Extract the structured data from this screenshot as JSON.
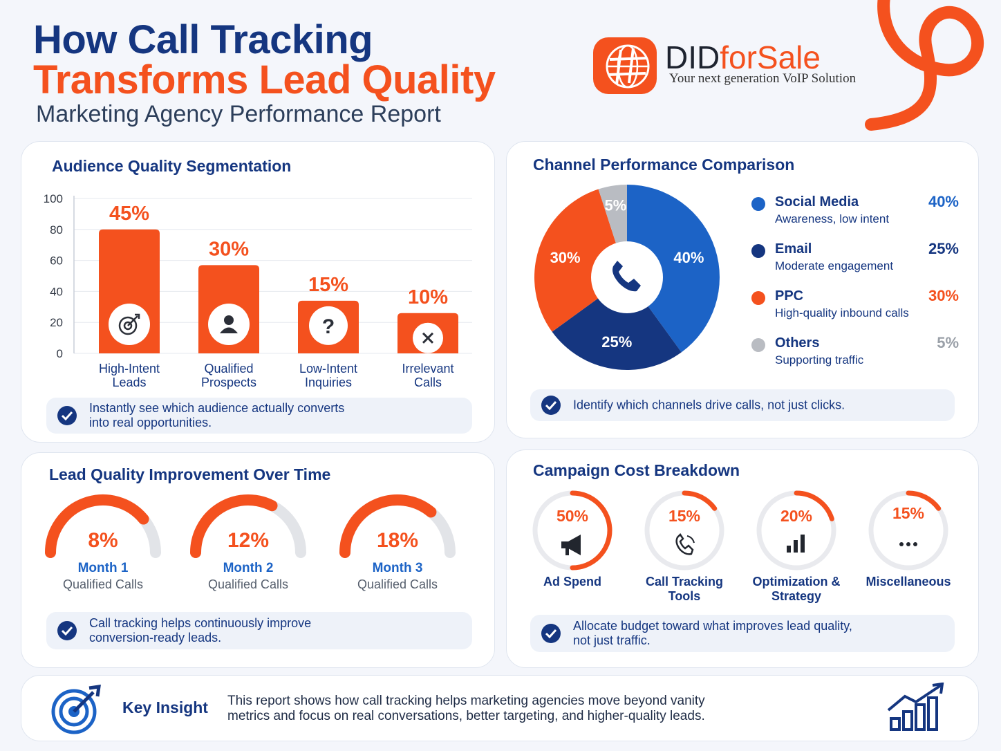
{
  "header": {
    "title_line1": "How Call Tracking",
    "title_line2": "Transforms Lead Quality",
    "subtitle": "Marketing Agency Performance Report"
  },
  "logo": {
    "name_part1": "DID",
    "name_part2": "forSale",
    "tagline": "Your next generation VoIP Solution"
  },
  "colors": {
    "orange": "#f4511e",
    "blue": "#1c63c6",
    "navy": "#153680",
    "gray": "#b9bcc2"
  },
  "chart_data": [
    {
      "type": "bar",
      "title": "Audience Quality Segmentation",
      "categories": [
        "High-Intent\nLeads",
        "Qualified\nProspects",
        "Low-Intent\nInquiries",
        "Irrelevant\nCalls"
      ],
      "values": [
        45,
        30,
        15,
        10
      ],
      "value_labels": [
        "45%",
        "30%",
        "15%",
        "10%"
      ],
      "bar_heights": [
        80,
        57,
        34,
        26
      ],
      "icons": [
        "target-icon",
        "person-icon",
        "question-icon",
        "x-icon"
      ],
      "yticks": [
        100,
        80,
        60,
        40,
        20,
        0
      ],
      "ylim": [
        0,
        100
      ],
      "note": "Instantly see which audience actually converts\ninto real opportunities."
    },
    {
      "type": "pie",
      "title": "Channel Performance Comparison",
      "slices": [
        {
          "name": "Social Media",
          "desc": "Awareness, low intent",
          "value": 40,
          "label": "40%",
          "color": "#1c63c6"
        },
        {
          "name": "Email",
          "desc": "Moderate engagement",
          "value": 25,
          "label": "25%",
          "color": "#153680"
        },
        {
          "name": "PPC",
          "desc": "High-quality inbound calls",
          "value": 30,
          "label": "30%",
          "color": "#f4511e"
        },
        {
          "name": "Others",
          "desc": "Supporting traffic",
          "value": 5,
          "label": "5%",
          "color": "#b9bcc2"
        }
      ],
      "center_icon": "phone-icon",
      "note": "Identify which channels drive calls, not just clicks."
    },
    {
      "type": "gauge",
      "title": "Lead Quality Improvement Over Time",
      "items": [
        {
          "value": "8%",
          "month": "Month 1",
          "label": "Qualified Calls",
          "fill_fraction": 0.78
        },
        {
          "value": "12%",
          "month": "Month 2",
          "label": "Qualified Calls",
          "fill_fraction": 0.65
        },
        {
          "value": "18%",
          "month": "Month 3",
          "label": "Qualified Calls",
          "fill_fraction": 0.72
        }
      ],
      "note": "Call tracking helps continuously improve\nconversion-ready leads."
    },
    {
      "type": "donut",
      "title": "Campaign Cost Breakdown",
      "items": [
        {
          "label": "Ad Spend",
          "value": 50,
          "display": "50%",
          "icon": "megaphone-icon"
        },
        {
          "label": "Call Tracking\nTools",
          "value": 15,
          "display": "15%",
          "icon": "phone-icon"
        },
        {
          "label": "Optimization &\nStrategy",
          "value": 20,
          "display": "20%",
          "icon": "bar-chart-icon"
        },
        {
          "label": "Miscellaneous",
          "value": 15,
          "display": "15%",
          "icon": "dots-icon"
        }
      ],
      "note": "Allocate budget toward what improves lead quality,\nnot just traffic."
    }
  ],
  "insight": {
    "label": "Key Insight",
    "text": "This report shows how call tracking helps marketing agencies move beyond vanity\nmetrics and focus on real conversations, better targeting, and higher-quality leads."
  }
}
